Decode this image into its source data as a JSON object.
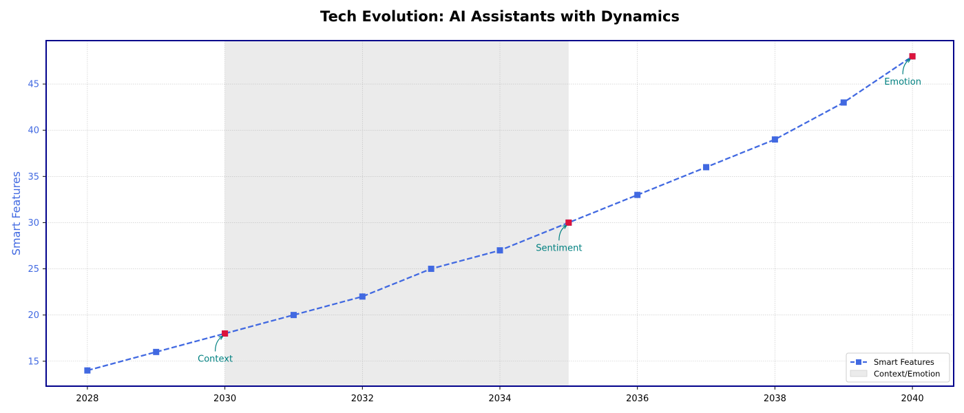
{
  "chart_data": {
    "type": "line",
    "title": "Tech Evolution: AI Assistants with Dynamics",
    "xlabel": "",
    "ylabel": "Smart Features",
    "x": [
      2028,
      2029,
      2030,
      2031,
      2032,
      2033,
      2034,
      2035,
      2036,
      2037,
      2038,
      2039,
      2040
    ],
    "series": [
      {
        "name": "Smart Features",
        "values": [
          14,
          16,
          18,
          20,
          22,
          25,
          27,
          30,
          33,
          36,
          39,
          43,
          48
        ],
        "color": "#4169e1",
        "line_style": "dashed",
        "marker": "square"
      }
    ],
    "highlight_points": [
      {
        "x": 2030,
        "y": 18,
        "label": "Context"
      },
      {
        "x": 2035,
        "y": 30,
        "label": "Sentiment"
      },
      {
        "x": 2040,
        "y": 48,
        "label": "Emotion"
      }
    ],
    "highlight_color": "#dc143c",
    "annotation_color": "#008080",
    "shaded_region": {
      "x_start": 2030,
      "x_end": 2035,
      "label": "Context/Emotion",
      "color": "#d3d3d3"
    },
    "xlim": [
      2027.4,
      2040.6
    ],
    "ylim": [
      12.3,
      49.7
    ],
    "x_ticks": [
      2028,
      2030,
      2032,
      2034,
      2036,
      2038,
      2040
    ],
    "y_ticks": [
      15,
      20,
      25,
      30,
      35,
      40,
      45
    ],
    "grid": true,
    "legend_position": "bottom-right",
    "axis_color": "#00008b",
    "ylabel_color": "#4169e1",
    "ytick_color": "#4169e1"
  }
}
